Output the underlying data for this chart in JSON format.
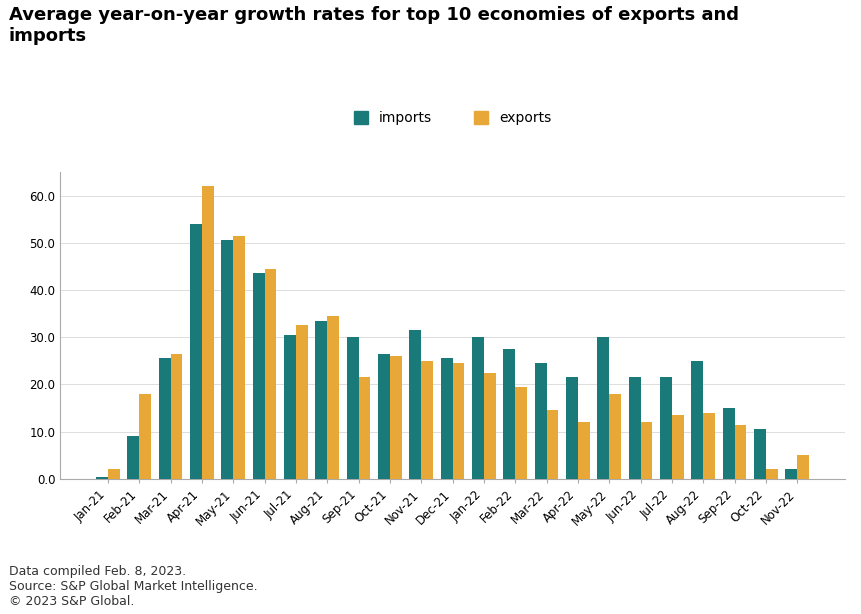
{
  "title": "Average year-on-year growth rates for top 10 economies of exports and\nimports",
  "categories": [
    "Jan-21",
    "Feb-21",
    "Mar-21",
    "Apr-21",
    "May-21",
    "Jun-21",
    "Jul-21",
    "Aug-21",
    "Sep-21",
    "Oct-21",
    "Nov-21",
    "Dec-21",
    "Jan-22",
    "Feb-22",
    "Mar-22",
    "Apr-22",
    "May-22",
    "Jun-22",
    "Jul-22",
    "Aug-22",
    "Sep-22",
    "Oct-22",
    "Nov-22"
  ],
  "imports": [
    0.5,
    9.0,
    25.5,
    54.0,
    50.5,
    43.5,
    30.5,
    33.5,
    30.0,
    26.5,
    31.5,
    25.5,
    30.0,
    27.5,
    24.5,
    21.5,
    30.0,
    21.5,
    21.5,
    25.0,
    15.0,
    10.5,
    2.0
  ],
  "exports": [
    2.0,
    18.0,
    26.5,
    62.0,
    51.5,
    44.5,
    32.5,
    34.5,
    21.5,
    26.0,
    25.0,
    24.5,
    22.5,
    19.5,
    14.5,
    12.0,
    18.0,
    12.0,
    13.5,
    14.0,
    11.5,
    2.0,
    5.0
  ],
  "imports_color": "#1a7a7a",
  "exports_color": "#e8a838",
  "ylim": [
    0,
    65
  ],
  "yticks": [
    0.0,
    10.0,
    20.0,
    30.0,
    40.0,
    50.0,
    60.0
  ],
  "footnotes": [
    "Data compiled Feb. 8, 2023.",
    "Source: S&P Global Market Intelligence.",
    "© 2023 S&P Global."
  ],
  "title_fontsize": 13,
  "tick_fontsize": 8.5,
  "legend_fontsize": 10,
  "footnote_fontsize": 9,
  "bar_width": 0.38,
  "background_color": "#ffffff"
}
